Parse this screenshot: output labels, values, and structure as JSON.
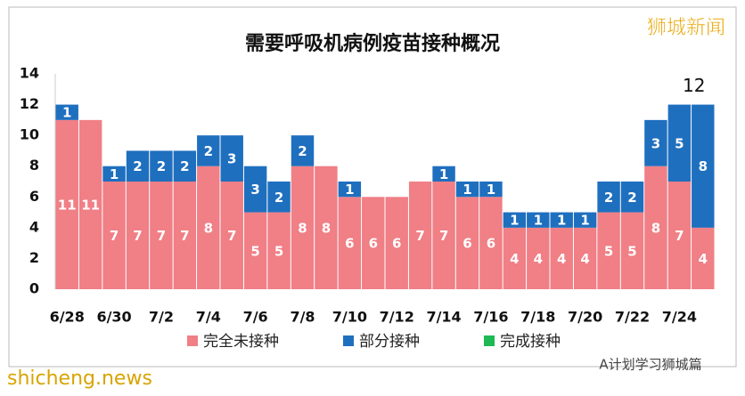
{
  "chart_data": {
    "type": "stacked-bar",
    "title": "需要呼吸机病例疫苗接种概况",
    "categories": [
      "6/28",
      null,
      "6/30",
      null,
      "7/2",
      null,
      "7/4",
      null,
      "7/6",
      null,
      "7/8",
      null,
      "7/10",
      null,
      "7/12",
      null,
      "7/14",
      null,
      "7/16",
      null,
      "7/18",
      null,
      "7/20",
      null,
      "7/22",
      null,
      "7/24",
      null
    ],
    "series": [
      {
        "name": "完全未接种",
        "color": "#f07f86",
        "values": [
          11,
          11,
          7,
          7,
          7,
          7,
          8,
          7,
          5,
          5,
          8,
          8,
          6,
          6,
          6,
          7,
          7,
          6,
          6,
          4,
          4,
          4,
          4,
          5,
          5,
          8,
          7,
          4
        ]
      },
      {
        "name": "部分接种",
        "color": "#1f6fbf",
        "values": [
          1,
          0,
          1,
          2,
          2,
          2,
          2,
          3,
          3,
          2,
          2,
          0,
          1,
          0,
          0,
          0,
          1,
          1,
          1,
          1,
          1,
          1,
          1,
          2,
          2,
          3,
          5,
          8
        ]
      },
      {
        "name": "完成接种",
        "color": "#1db954",
        "values": [
          0,
          0,
          0,
          0,
          0,
          0,
          0,
          0,
          0,
          0,
          0,
          0,
          0,
          0,
          0,
          0,
          0,
          0,
          0,
          0,
          0,
          0,
          0,
          0,
          0,
          0,
          0,
          0
        ]
      }
    ],
    "annotation": "12",
    "ylim": [
      0,
      14
    ],
    "yticks": [
      0,
      2,
      4,
      6,
      8,
      10,
      12,
      14
    ],
    "grid": false,
    "legend": "bottom"
  },
  "watermarks": [
    "狮城新闻",
    "shicheng.news",
    "A计划学习狮城篇"
  ]
}
